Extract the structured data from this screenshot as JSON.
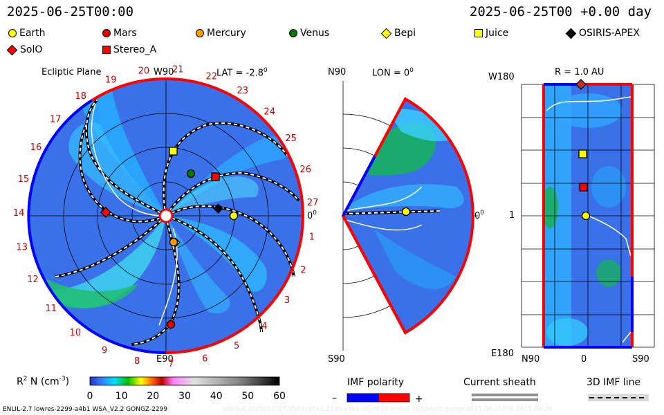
{
  "header": {
    "left_time": "2025-06-25T00:00",
    "right_time": "2025-06-25T00 +0.00 day"
  },
  "legend": [
    {
      "label": "Earth",
      "color": "#ffff00",
      "shape": "circle"
    },
    {
      "label": "Mars",
      "color": "#e00000",
      "shape": "circle"
    },
    {
      "label": "Mercury",
      "color": "#ff9900",
      "shape": "circle"
    },
    {
      "label": "Venus",
      "color": "#007700",
      "shape": "circle"
    },
    {
      "label": "Bepi",
      "color": "#ffff00",
      "shape": "diamond"
    },
    {
      "label": "Juice",
      "color": "#ffff00",
      "shape": "square"
    },
    {
      "label": "OSIRIS-APEX",
      "color": "#000000",
      "shape": "diamond"
    },
    {
      "label": "SolO",
      "color": "#ff0000",
      "shape": "diamond"
    },
    {
      "label": "Stereo_A",
      "color": "#ff0000",
      "shape": "square"
    }
  ],
  "panels": {
    "ecliptic": {
      "title": "Ecliptic Plane",
      "w90": "W90",
      "lat": "LAT = -2.8",
      "deg": "0",
      "e90": "E90",
      "zero": "0",
      "sector_numbers": [
        "19",
        "20",
        "21",
        "22",
        "23",
        "24",
        "25",
        "26",
        "27",
        "1",
        "2",
        "3",
        "4",
        "5",
        "6",
        "7",
        "8",
        "9",
        "10",
        "11",
        "12",
        "13",
        "14",
        "15",
        "16",
        "17",
        "18"
      ]
    },
    "meridional": {
      "n90": "N90",
      "lon": "LON = 0",
      "deg": "0",
      "s90": "S90",
      "zero": "0"
    },
    "radial": {
      "w180": "W180",
      "r": "R = 1.0 AU",
      "one": "1",
      "e180": "E180",
      "n90": "N90",
      "zero": "0",
      "s90": "S90"
    }
  },
  "colorbar": {
    "label": "R",
    "sup": "2",
    "label_rest": " N (cm",
    "sup2": "-3",
    "label_end": ")",
    "ticks": [
      "0",
      "10",
      "20",
      "30",
      "40",
      "50",
      "60"
    ]
  },
  "imf_polarity": {
    "title": "IMF polarity",
    "minus": "–",
    "plus": "+",
    "neg_color": "#0000ff",
    "pos_color": "#ff0000"
  },
  "current_sheath": {
    "title": "Current sheath"
  },
  "imf_line": {
    "title": "3D IMF line"
  },
  "footer": {
    "left": "ENLIL-2.7 lowres-2299-a4b1 WSA_V2.2 GONGZ-2299",
    "right": "UNIQUE2025012107/2561x90x1.2299-a4b1.16-mcptumrled-1g53dsd2.gongz-2025-06-25T00   2025-06-26"
  },
  "chart_data": [
    {
      "type": "heatmap",
      "title": "Ecliptic Plane",
      "quantity": "R^2 N (cm^-3)",
      "colorbar_range": [
        0,
        60
      ],
      "lat": -2.8,
      "bodies": [
        {
          "name": "Earth",
          "angle_deg": 0,
          "r_au": 1.0
        },
        {
          "name": "Juice",
          "angle_deg": 90,
          "r_au": 0.95
        },
        {
          "name": "Venus",
          "angle_deg": 62,
          "r_au": 0.72
        },
        {
          "name": "Stereo_A",
          "angle_deg": 40,
          "r_au": 0.97
        },
        {
          "name": "OSIRIS-APEX",
          "angle_deg": 7,
          "r_au": 0.85
        },
        {
          "name": "Mars",
          "angle_deg": 180,
          "r_au": 1.0
        },
        {
          "name": "SolO",
          "angle_deg": -86,
          "r_au": 0.38
        },
        {
          "name": "Mercury",
          "angle_deg": -88,
          "r_au": 0.4
        },
        {
          "name": "Bepi",
          "angle_deg": -85,
          "r_au": 0.4
        },
        {
          "name": "Mars (E)",
          "angle_deg": -88,
          "r_au": 1.6
        }
      ]
    },
    {
      "type": "heatmap",
      "title": "LON = 0",
      "quantity": "R^2 N (cm^-3)",
      "lat_range_deg": [
        -60,
        60
      ],
      "bodies": [
        {
          "name": "Earth",
          "lat_deg": 0,
          "r_au": 1.0
        }
      ]
    },
    {
      "type": "heatmap",
      "title": "R = 1.0 AU",
      "quantity": "R^2 N (cm^-3)",
      "x_label_ticks": [
        "N90",
        "0",
        "S90"
      ],
      "y_label_ticks": [
        "W180",
        "1",
        "E180"
      ],
      "bodies": [
        {
          "name": "OSIRIS-APEX",
          "lat_deg": 0,
          "lon_deg": 180
        },
        {
          "name": "Juice",
          "lat_deg": 0,
          "lon_deg": 90
        },
        {
          "name": "Stereo_A",
          "lat_deg": 0,
          "lon_deg": 40
        },
        {
          "name": "Earth",
          "lat_deg": 0,
          "lon_deg": 0
        }
      ]
    }
  ]
}
